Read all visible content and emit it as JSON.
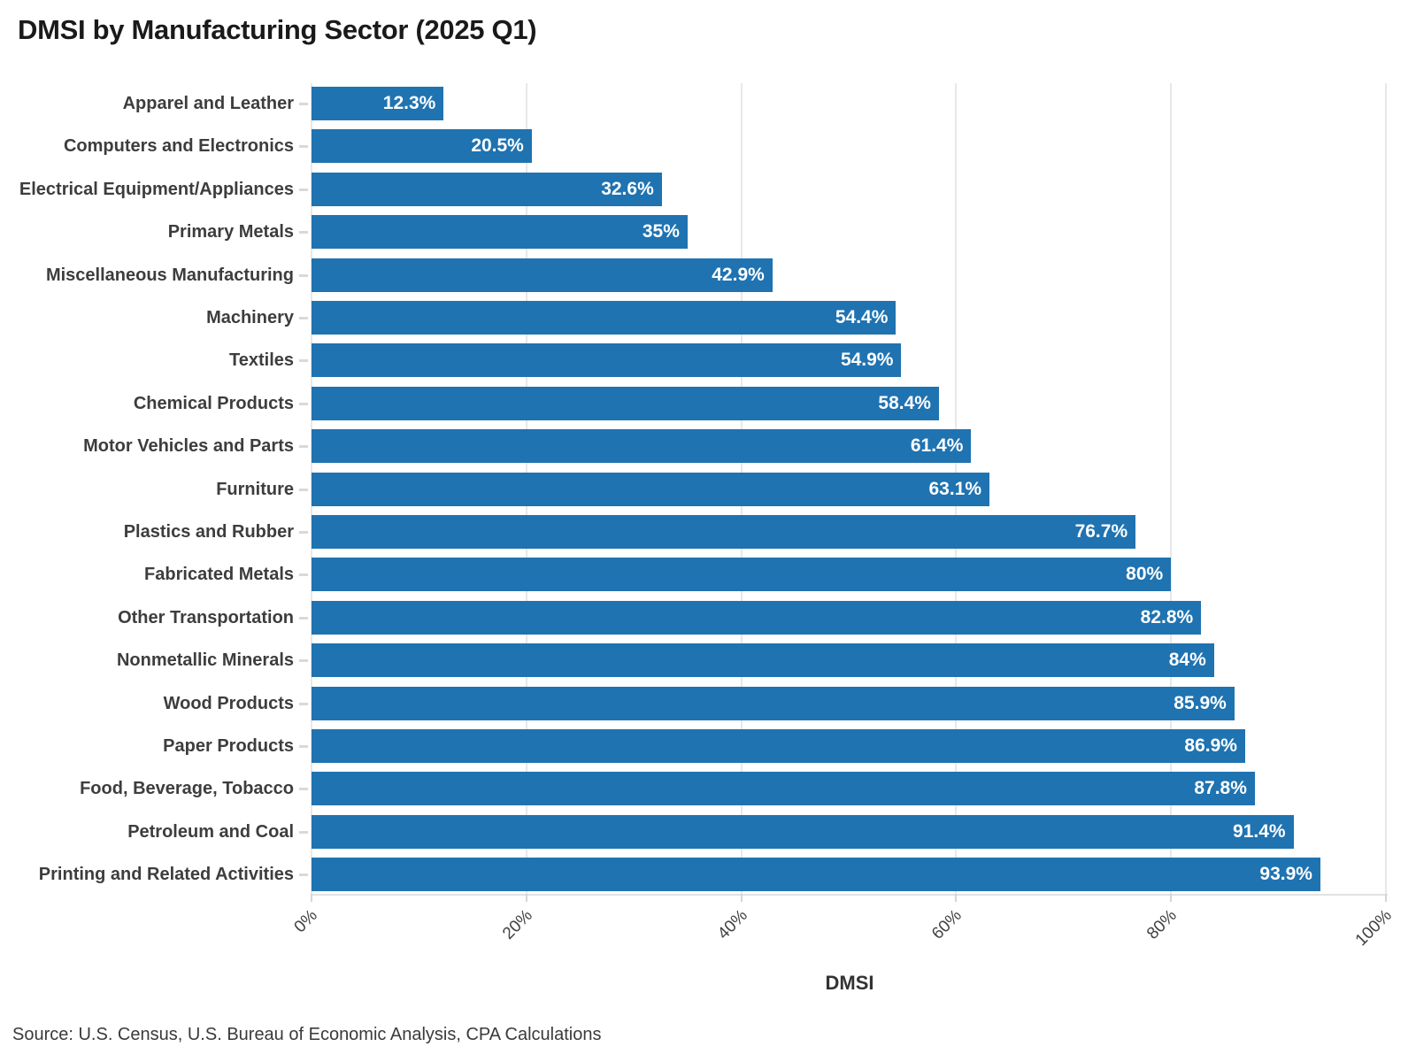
{
  "title": "DMSI by Manufacturing Sector (2025 Q1)",
  "source": "Source: U.S. Census, U.S. Bureau of Economic Analysis, CPA Calculations",
  "colors": {
    "bar": "#1f73b1",
    "grid": "#e8e8e8",
    "axis": "#e2e2e2",
    "title_text": "#1a1a1a",
    "category_text": "#3d3d3d",
    "value_text": "#ffffff",
    "tick_text": "#424242"
  },
  "chart_data": {
    "type": "bar",
    "orientation": "horizontal",
    "title": "DMSI by Manufacturing Sector (2025 Q1)",
    "xlabel": "DMSI",
    "ylabel": "",
    "xlim": [
      0,
      100
    ],
    "grid": true,
    "x_tick_values": [
      0,
      20,
      40,
      60,
      80,
      100
    ],
    "x_tick_labels": [
      "0%",
      "20%",
      "40%",
      "60%",
      "80%",
      "100%"
    ],
    "categories": [
      "Apparel and Leather",
      "Computers and Electronics",
      "Electrical Equipment/Appliances",
      "Primary Metals",
      "Miscellaneous Manufacturing",
      "Machinery",
      "Textiles",
      "Chemical Products",
      "Motor Vehicles and Parts",
      "Furniture",
      "Plastics and Rubber",
      "Fabricated Metals",
      "Other Transportation",
      "Nonmetallic Minerals",
      "Wood Products",
      "Paper Products",
      "Food, Beverage, Tobacco",
      "Petroleum and Coal",
      "Printing and Related Activities"
    ],
    "values": [
      12.3,
      20.5,
      32.6,
      35,
      42.9,
      54.4,
      54.9,
      58.4,
      61.4,
      63.1,
      76.7,
      80,
      82.8,
      84,
      85.9,
      86.9,
      87.8,
      91.4,
      93.9
    ],
    "value_labels": [
      "12.3%",
      "20.5%",
      "32.6%",
      "35%",
      "42.9%",
      "54.4%",
      "54.9%",
      "58.4%",
      "61.4%",
      "63.1%",
      "76.7%",
      "80%",
      "82.8%",
      "84%",
      "85.9%",
      "86.9%",
      "87.8%",
      "91.4%",
      "93.9%"
    ]
  }
}
